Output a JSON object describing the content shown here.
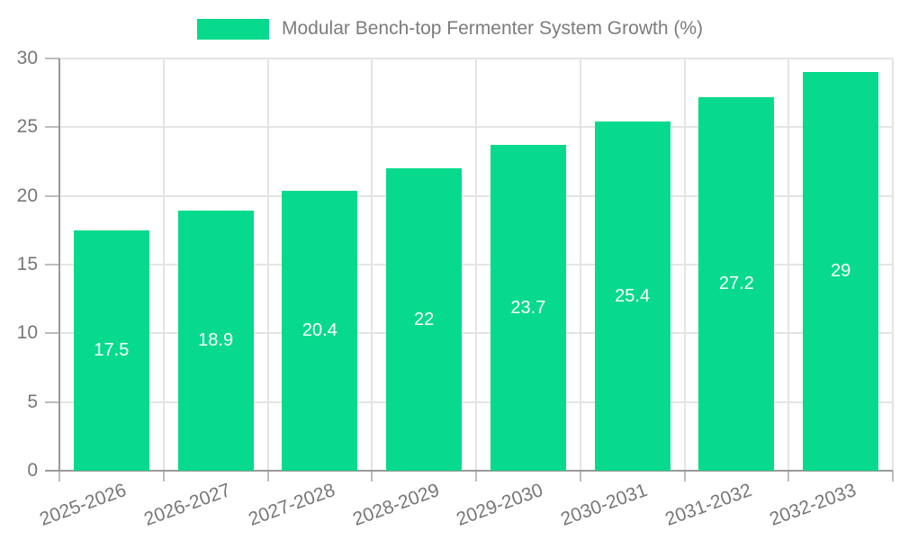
{
  "chart_data": {
    "type": "bar",
    "title": "Modular Bench-top Fermenter System Growth (%)",
    "categories": [
      "2025-2026",
      "2026-2027",
      "2027-2028",
      "2028-2029",
      "2029-2030",
      "2030-2031",
      "2031-2032",
      "2032-2033"
    ],
    "series": [
      {
        "name": "Modular Bench-top Fermenter System Growth (%)",
        "values": [
          17.5,
          18.9,
          20.4,
          22,
          23.7,
          25.4,
          27.2,
          29
        ]
      }
    ],
    "values": [
      17.5,
      18.9,
      20.4,
      22,
      23.7,
      25.4,
      27.2,
      29
    ],
    "value_labels": [
      "17.5",
      "18.9",
      "20.4",
      "22",
      "23.7",
      "25.4",
      "27.2",
      "29"
    ],
    "xlabel": "",
    "ylabel": "",
    "ylim": [
      0,
      30
    ],
    "yticks": [
      0,
      5,
      10,
      15,
      20,
      25,
      30
    ],
    "grid": "on",
    "legend_position": "top-center",
    "x_label_rotation_deg": -20,
    "colors": {
      "bar": "#07da8c",
      "bar_value_text": "#ffffff",
      "axis_line": "#999999",
      "tick_mark": "#bdbdbd",
      "gridline": "#e4e4e4",
      "axis_text": "#777777",
      "legend_text": "#7c7c7c",
      "background": "#ffffff"
    }
  }
}
